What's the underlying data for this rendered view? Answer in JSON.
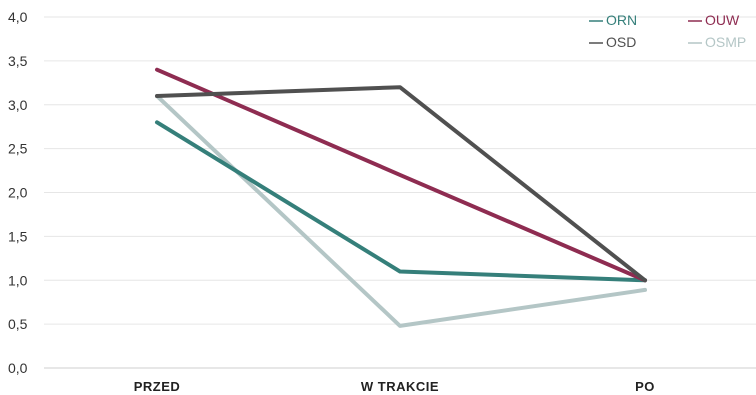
{
  "chart_data": {
    "type": "line",
    "title": "",
    "xlabel": "",
    "ylabel": "",
    "categories": [
      "PRZED",
      "W TRAKCIE",
      "PO"
    ],
    "ylim": [
      0,
      4
    ],
    "yticks": [
      "0,0",
      "0,5",
      "1,0",
      "1,5",
      "2,0",
      "2,5",
      "3,0",
      "3,5",
      "4,0"
    ],
    "grid": true,
    "legend_position": "top-right",
    "series": [
      {
        "name": "ORN",
        "color": "#357f7a",
        "values": [
          2.8,
          1.1,
          1.0
        ]
      },
      {
        "name": "OUW",
        "color": "#8e2c51",
        "values": [
          3.4,
          2.2,
          1.0
        ]
      },
      {
        "name": "OSD",
        "color": "#505050",
        "values": [
          3.1,
          3.2,
          1.0
        ]
      },
      {
        "name": "OSMP",
        "color": "#b4c6c6",
        "values": [
          3.1,
          0.48,
          0.89
        ]
      }
    ]
  }
}
